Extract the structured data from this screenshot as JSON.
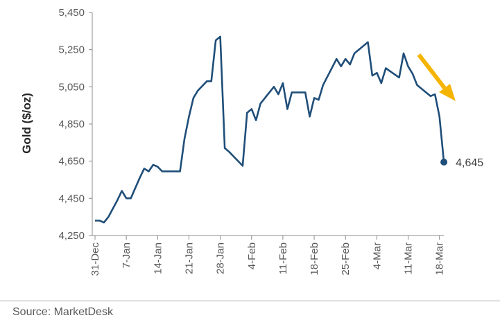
{
  "chart_data": {
    "type": "line",
    "ylabel": "Gold ($/oz)",
    "xlabel": "",
    "ylim": [
      4250,
      5450
    ],
    "y_ticks": [
      "4,250",
      "4,450",
      "4,650",
      "4,850",
      "5,050",
      "5,250",
      "5,450"
    ],
    "y_tick_values": [
      4250,
      4450,
      4650,
      4850,
      5050,
      5250,
      5450
    ],
    "x_ticks": [
      "31-Dec",
      "7-Jan",
      "14-Jan",
      "21-Jan",
      "28-Jan",
      "4-Feb",
      "11-Feb",
      "18-Feb",
      "25-Feb",
      "4-Mar",
      "11-Mar",
      "18-Mar"
    ],
    "x_tick_days": [
      0,
      7,
      14,
      21,
      28,
      35,
      42,
      49,
      56,
      63,
      70,
      77
    ],
    "grid": false,
    "series": [
      {
        "color": "#1f4e79",
        "x_days": [
          0,
          1,
          2,
          3,
          5,
          6,
          7,
          8,
          10,
          11,
          12,
          13,
          14,
          15,
          16,
          19,
          20,
          21,
          22,
          23,
          25,
          26,
          27,
          28,
          29,
          30,
          33,
          34,
          35,
          36,
          37,
          40,
          41,
          42,
          43,
          44,
          47,
          48,
          49,
          50,
          51,
          54,
          55,
          56,
          57,
          58,
          61,
          62,
          63,
          64,
          65,
          68,
          69,
          70,
          71,
          72,
          75,
          76,
          77
        ],
        "values": [
          4330,
          4330,
          4320,
          4350,
          4440,
          4490,
          4450,
          4450,
          4560,
          4610,
          4595,
          4630,
          4620,
          4595,
          4595,
          4595,
          4770,
          4890,
          4990,
          5030,
          5080,
          5080,
          5300,
          5320,
          4720,
          4700,
          4625,
          4910,
          4930,
          4870,
          4960,
          5050,
          5010,
          5070,
          4930,
          5020,
          5020,
          4890,
          4990,
          4980,
          5060,
          5200,
          5160,
          5200,
          5170,
          5230,
          5290,
          5110,
          5125,
          5070,
          5150,
          5100,
          5230,
          5160,
          5120,
          5060,
          5000,
          5010,
          4890
        ]
      }
    ],
    "last_point": {
      "x_day": 78,
      "value": 4645,
      "label": "4,645"
    },
    "annotations": [
      {
        "type": "arrow",
        "color": "#f5b400",
        "direction": "down-right"
      }
    ]
  },
  "source": "Source: MarketDesk"
}
